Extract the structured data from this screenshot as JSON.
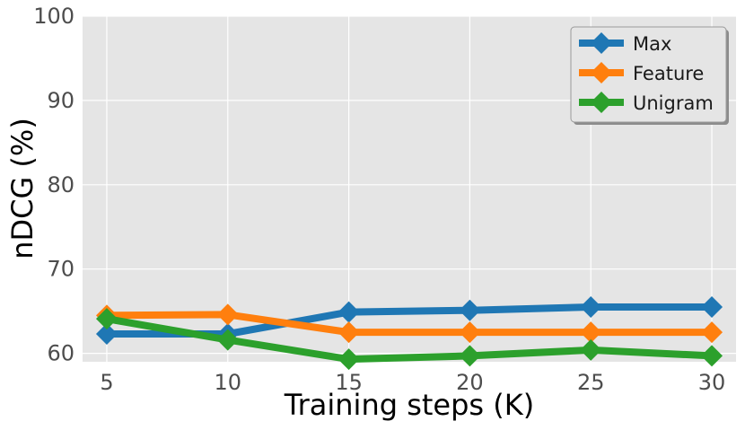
{
  "chart_data": {
    "type": "line",
    "x": [
      5,
      10,
      15,
      20,
      25,
      30
    ],
    "xlabel": "Training steps (K)",
    "ylabel": "nDCG (%)",
    "xlim": [
      4,
      31
    ],
    "ylim": [
      59,
      100
    ],
    "xticks": [
      5,
      10,
      15,
      20,
      25,
      30
    ],
    "yticks": [
      60,
      70,
      80,
      90,
      100
    ],
    "grid": true,
    "legend_position": "top-right",
    "series": [
      {
        "name": "Max",
        "color": "#1f77b4",
        "marker": "diamond",
        "values": [
          62.3,
          62.3,
          64.9,
          65.1,
          65.5,
          65.5
        ]
      },
      {
        "name": "Feature",
        "color": "#ff7f0e",
        "marker": "diamond",
        "values": [
          64.5,
          64.6,
          62.5,
          62.5,
          62.5,
          62.5
        ]
      },
      {
        "name": "Unigram",
        "color": "#2ca02c",
        "marker": "diamond",
        "values": [
          64.1,
          61.6,
          59.3,
          59.7,
          60.4,
          59.7
        ]
      }
    ]
  }
}
